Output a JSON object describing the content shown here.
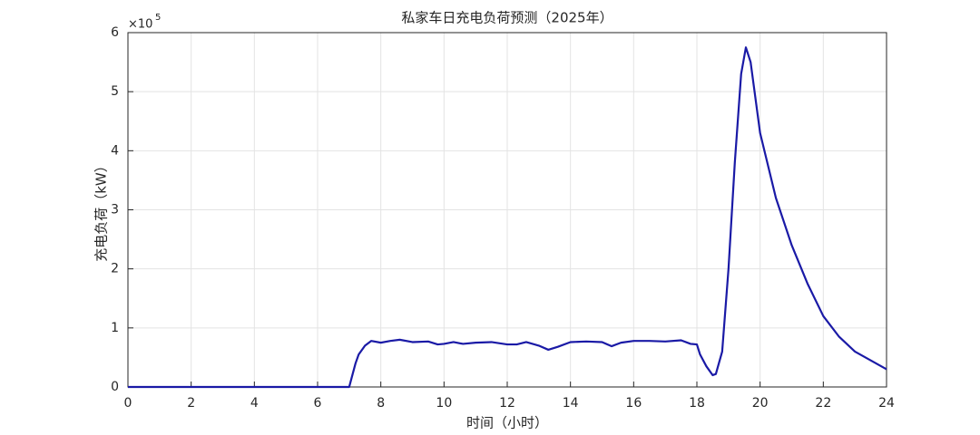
{
  "chart_data": {
    "type": "line",
    "title": "私家车日充电负荷预测（2025年）",
    "x_label": "时间（小时）",
    "y_label": "充电负荷（kW）",
    "y_multiplier": "×10",
    "y_exponent": "5",
    "x": [
      0,
      7.0,
      7.1,
      7.2,
      7.3,
      7.5,
      7.7,
      8.0,
      8.3,
      8.6,
      9.0,
      9.5,
      9.8,
      10.0,
      10.3,
      10.6,
      11.0,
      11.5,
      12.0,
      12.3,
      12.6,
      13.0,
      13.3,
      13.6,
      14.0,
      14.5,
      15.0,
      15.3,
      15.6,
      16.0,
      16.5,
      17.0,
      17.5,
      17.8,
      18.0,
      18.1,
      18.3,
      18.5,
      18.6,
      18.8,
      19.0,
      19.2,
      19.4,
      19.55,
      19.7,
      20.0,
      20.5,
      21.0,
      21.5,
      22.0,
      22.5,
      23.0,
      23.5,
      24.0
    ],
    "series": [
      {
        "color": "#1a1aa6",
        "values": [
          0,
          0,
          0.2,
          0.4,
          0.55,
          0.7,
          0.78,
          0.75,
          0.78,
          0.8,
          0.76,
          0.77,
          0.72,
          0.73,
          0.76,
          0.73,
          0.75,
          0.76,
          0.72,
          0.72,
          0.76,
          0.7,
          0.63,
          0.68,
          0.76,
          0.77,
          0.76,
          0.69,
          0.75,
          0.78,
          0.78,
          0.77,
          0.79,
          0.73,
          0.72,
          0.55,
          0.35,
          0.2,
          0.22,
          0.6,
          2.0,
          3.8,
          5.3,
          5.75,
          5.5,
          4.3,
          3.2,
          2.4,
          1.75,
          1.2,
          0.85,
          0.6,
          0.45,
          0.3
        ]
      }
    ],
    "xlim": [
      0,
      24
    ],
    "xticks": [
      0,
      2,
      4,
      6,
      8,
      10,
      12,
      14,
      16,
      18,
      20,
      22,
      24
    ],
    "ylim": [
      0,
      6
    ],
    "yticks": [
      0,
      1,
      2,
      3,
      4,
      5,
      6
    ],
    "grid": true
  }
}
